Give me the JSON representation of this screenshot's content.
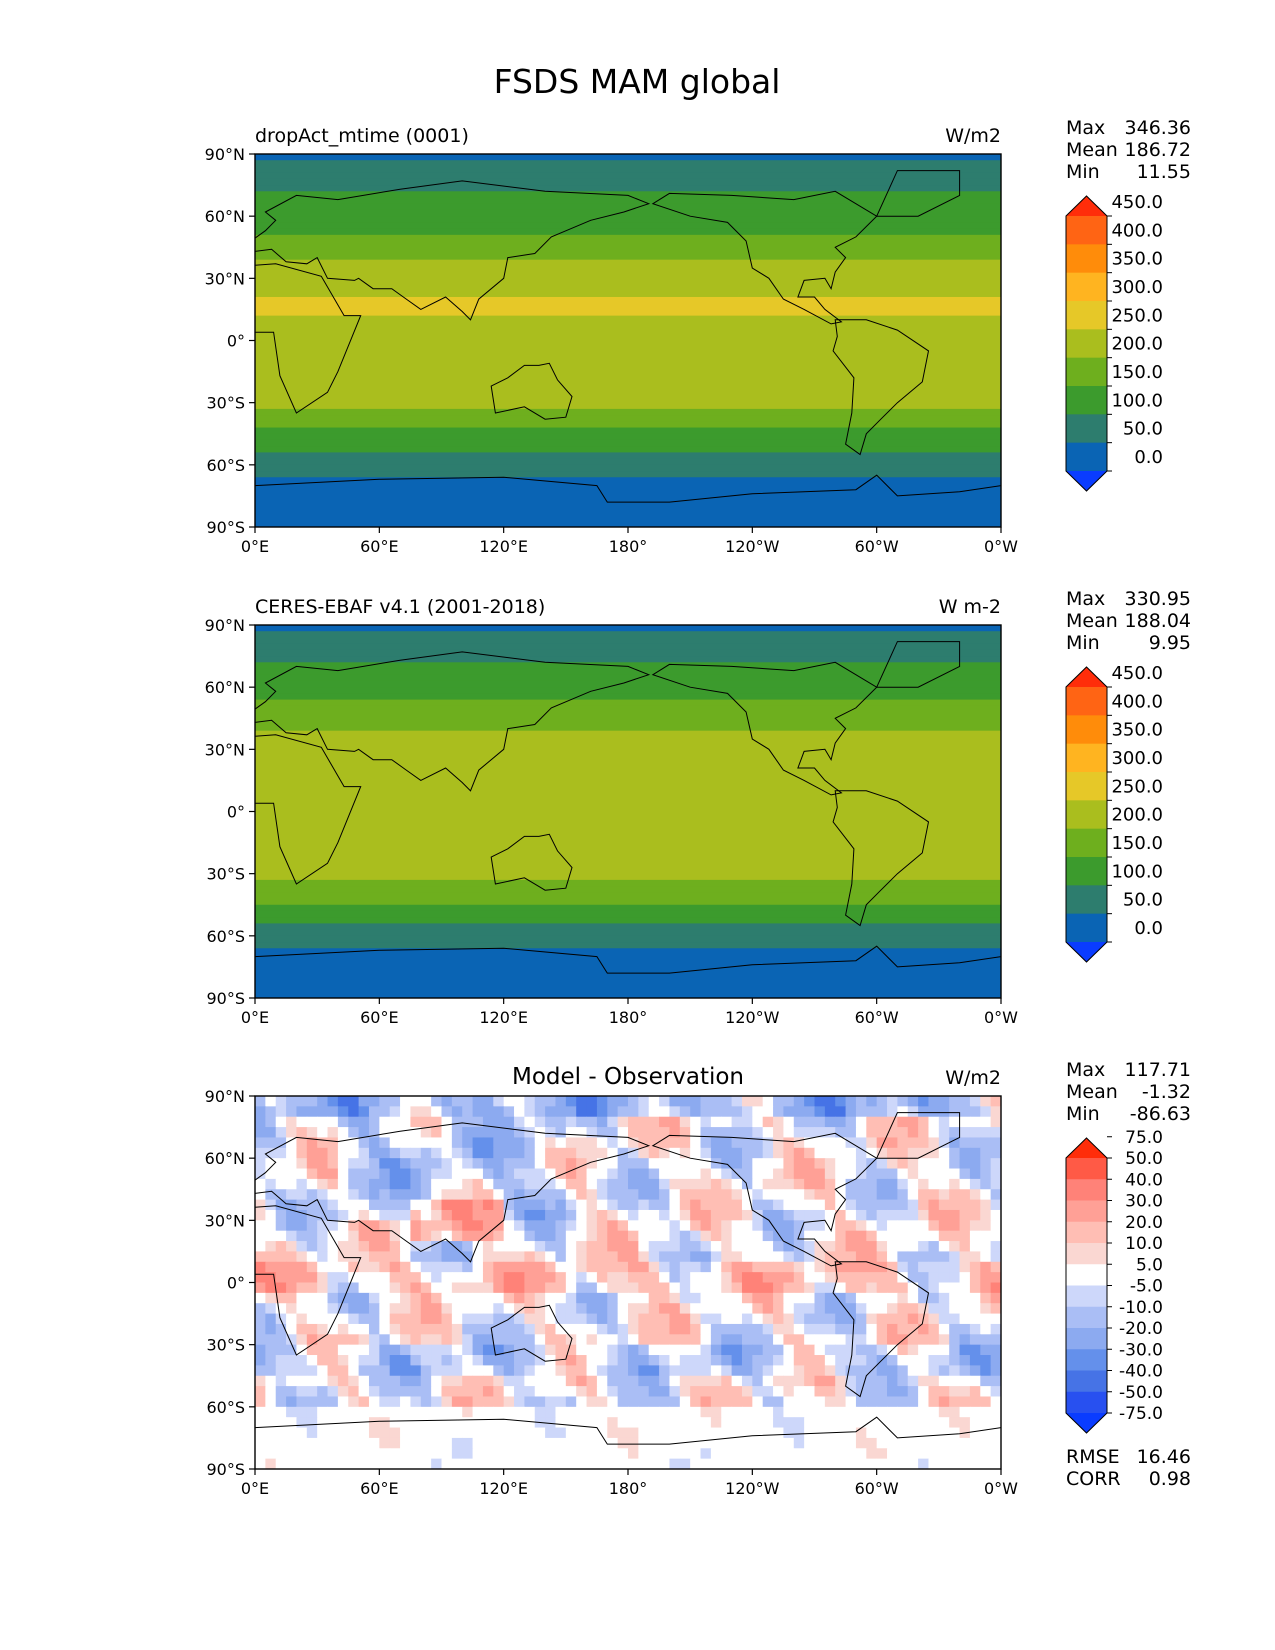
{
  "figure": {
    "title": "FSDS MAM global"
  },
  "axes": {
    "lat_ticks": [
      "90°N",
      "60°N",
      "30°N",
      "0°",
      "30°S",
      "60°S",
      "90°S"
    ],
    "lon_ticks": [
      "0°E",
      "60°E",
      "120°E",
      "180°",
      "120°W",
      "60°W",
      "0°W"
    ]
  },
  "colors": {
    "abs_levels": [
      "#0a3cff",
      "#0a64b4",
      "#2d7d6e",
      "#3c9b2d",
      "#6eaf1e",
      "#aabe1e",
      "#e6c828",
      "#ffb420",
      "#ff8c0a",
      "#ff6414",
      "#ff2d0a"
    ],
    "diff_levels": [
      "#0a3cff",
      "#2850f0",
      "#4673e6",
      "#6490eb",
      "#8caaf0",
      "#aabef5",
      "#cdd7fa",
      "#ffffff",
      "#fad7d2",
      "#ffbeb4",
      "#ffa096",
      "#ff8278",
      "#ff5a46",
      "#ff2d0a"
    ]
  },
  "chart_data": [
    {
      "type": "heatmap",
      "title": "dropAct_mtime (0001)",
      "units": "W/m2",
      "stats": {
        "max_label": "Max",
        "max": "346.36",
        "mean_label": "Mean",
        "mean": "186.72",
        "min_label": "Min",
        "min": "11.55"
      },
      "colorbar": {
        "levels": [
          "0.0",
          "50.0",
          "100.0",
          "150.0",
          "200.0",
          "250.0",
          "300.0",
          "350.0",
          "400.0",
          "450.0"
        ]
      },
      "lat_profile": [
        [
          90,
          40
        ],
        [
          75,
          95
        ],
        [
          60,
          120
        ],
        [
          45,
          175
        ],
        [
          30,
          240
        ],
        [
          15,
          255
        ],
        [
          0,
          235
        ],
        [
          -15,
          240
        ],
        [
          -30,
          225
        ],
        [
          -45,
          140
        ],
        [
          -60,
          60
        ],
        [
          -75,
          30
        ],
        [
          -90,
          20
        ]
      ]
    },
    {
      "type": "heatmap",
      "title": "CERES-EBAF v4.1 (2001-2018)",
      "units": "W m-2",
      "stats": {
        "max_label": "Max",
        "max": "330.95",
        "mean_label": "Mean",
        "mean": "188.04",
        "min_label": "Min",
        "min": "9.95"
      },
      "colorbar": {
        "levels": [
          "0.0",
          "50.0",
          "100.0",
          "150.0",
          "200.0",
          "250.0",
          "300.0",
          "350.0",
          "400.0",
          "450.0"
        ]
      },
      "lat_profile": [
        [
          90,
          40
        ],
        [
          75,
          95
        ],
        [
          60,
          125
        ],
        [
          45,
          175
        ],
        [
          30,
          245
        ],
        [
          15,
          250
        ],
        [
          0,
          225
        ],
        [
          -15,
          240
        ],
        [
          -30,
          220
        ],
        [
          -45,
          150
        ],
        [
          -60,
          65
        ],
        [
          -75,
          30
        ],
        [
          -90,
          20
        ]
      ]
    },
    {
      "type": "heatmap",
      "title": "Model - Observation",
      "units": "W/m2",
      "stats": {
        "max_label": "Max",
        "max": "117.71",
        "mean_label": "Mean",
        "mean": "-1.32",
        "min_label": "Min",
        "min": "-86.63"
      },
      "colorbar": {
        "levels": [
          "-75.0",
          "-50.0",
          "-40.0",
          "-30.0",
          "-20.0",
          "-10.0",
          "-5.0",
          "5.0",
          "10.0",
          "20.0",
          "30.0",
          "40.0",
          "50.0",
          "75.0"
        ]
      },
      "metrics": {
        "rmse_label": "RMSE",
        "rmse": "16.46",
        "corr_label": "CORR",
        "corr": "0.98"
      }
    }
  ]
}
